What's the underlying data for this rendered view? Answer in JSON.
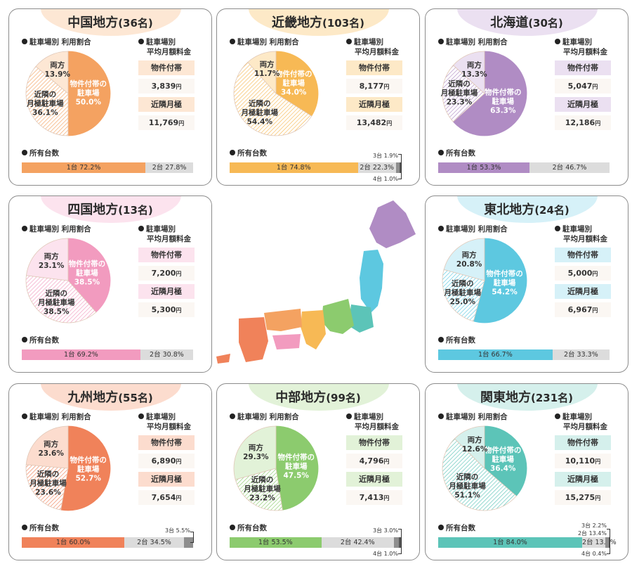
{
  "labels": {
    "usage": "駐車場別 利用割合",
    "fee_line1": "駐車場別",
    "fee_line2": "平均月額料金",
    "owned": "所有台数",
    "unit": "円",
    "fee_row1": "物件付帯",
    "fee_row2": "近隣月極"
  },
  "chart_data": [
    {
      "type": "pie",
      "region": "中国地方",
      "count": "(36名)",
      "color": "#f4a261",
      "light": "#fde7d4",
      "slices": [
        {
          "label": "物件付帯の\n駐車場",
          "value": 50.0
        },
        {
          "label": "近隣の\n月極駐車場",
          "value": 36.1
        },
        {
          "label": "両方",
          "value": 13.9
        }
      ],
      "fees": {
        "property": "3,839",
        "nearby": "11,769"
      },
      "ownership": [
        {
          "label": "1台",
          "value": 72.2
        },
        {
          "label": "2台",
          "value": 27.8
        }
      ],
      "extras": []
    },
    {
      "type": "pie",
      "region": "近畿地方",
      "count": "(103名)",
      "color": "#f7b955",
      "light": "#fde9c7",
      "slices": [
        {
          "label": "物件付帯の\n駐車場",
          "value": 34.0
        },
        {
          "label": "近隣の\n月極駐車場",
          "value": 54.4
        },
        {
          "label": "両方",
          "value": 11.7
        }
      ],
      "fees": {
        "property": "8,177",
        "nearby": "13,482"
      },
      "ownership": [
        {
          "label": "1台",
          "value": 74.8
        },
        {
          "label": "2台",
          "value": 22.3
        },
        {
          "label": "3台",
          "value": 1.9
        },
        {
          "label": "4台",
          "value": 1.0
        }
      ],
      "extras": [
        {
          "label": "3台",
          "value": "1.9%"
        },
        {
          "label": "4台",
          "value": "1.0%"
        }
      ]
    },
    {
      "type": "pie",
      "region": "北海道",
      "count": "(30名)",
      "color": "#b08cc4",
      "light": "#ebe0f1",
      "slices": [
        {
          "label": "物件付帯の\n駐車場",
          "value": 63.3
        },
        {
          "label": "近隣の\n月極駐車場",
          "value": 23.3
        },
        {
          "label": "両方",
          "value": 13.3
        }
      ],
      "fees": {
        "property": "5,047",
        "nearby": "12,186"
      },
      "ownership": [
        {
          "label": "1台",
          "value": 53.3
        },
        {
          "label": "2台",
          "value": 46.7
        }
      ],
      "extras": []
    },
    {
      "type": "pie",
      "region": "四国地方",
      "count": "(13名)",
      "color": "#f29bbf",
      "light": "#fce3ee",
      "slices": [
        {
          "label": "物件付帯の\n駐車場",
          "value": 38.5
        },
        {
          "label": "近隣の\n月極駐車場",
          "value": 38.5
        },
        {
          "label": "両方",
          "value": 23.1
        }
      ],
      "fees": {
        "property": "7,200",
        "nearby": "5,300"
      },
      "ownership": [
        {
          "label": "1台",
          "value": 69.2
        },
        {
          "label": "2台",
          "value": 30.8
        }
      ],
      "extras": []
    },
    {
      "type": "pie",
      "region": "東北地方",
      "count": "(24名)",
      "color": "#5dc8e0",
      "light": "#d6f1f8",
      "slices": [
        {
          "label": "物件付帯の\n駐車場",
          "value": 54.2
        },
        {
          "label": "近隣の\n月極駐車場",
          "value": 25.0
        },
        {
          "label": "両方",
          "value": 20.8
        }
      ],
      "fees": {
        "property": "5,000",
        "nearby": "6,967"
      },
      "ownership": [
        {
          "label": "1台",
          "value": 66.7
        },
        {
          "label": "2台",
          "value": 33.3
        }
      ],
      "extras": []
    },
    {
      "type": "pie",
      "region": "九州地方",
      "count": "(55名)",
      "color": "#f0825a",
      "light": "#fcdcce",
      "slices": [
        {
          "label": "物件付帯の\n駐車場",
          "value": 52.7
        },
        {
          "label": "近隣の\n月極駐車場",
          "value": 23.6
        },
        {
          "label": "両方",
          "value": 23.6
        }
      ],
      "fees": {
        "property": "6,890",
        "nearby": "7,654"
      },
      "ownership": [
        {
          "label": "1台",
          "value": 60.0
        },
        {
          "label": "2台",
          "value": 34.5
        },
        {
          "label": "3台",
          "value": 5.5
        }
      ],
      "extras": [
        {
          "label": "3台",
          "value": "5.5%"
        }
      ]
    },
    {
      "type": "pie",
      "region": "中部地方",
      "count": "(99名)",
      "color": "#8ccb6e",
      "light": "#e2f2d8",
      "slices": [
        {
          "label": "物件付帯の\n駐車場",
          "value": 47.5
        },
        {
          "label": "近隣の\n月極駐車場",
          "value": 23.2
        },
        {
          "label": "両方",
          "value": 29.3
        }
      ],
      "fees": {
        "property": "4,796",
        "nearby": "7,413"
      },
      "ownership": [
        {
          "label": "1台",
          "value": 53.5
        },
        {
          "label": "2台",
          "value": 42.4
        },
        {
          "label": "3台",
          "value": 3.0
        },
        {
          "label": "4台",
          "value": 1.0
        }
      ],
      "extras": [
        {
          "label": "3台",
          "value": "3.0%"
        },
        {
          "label": "4台",
          "value": "1.0%"
        }
      ]
    },
    {
      "type": "pie",
      "region": "関東地方",
      "count": "(231名)",
      "color": "#5cc4b8",
      "light": "#d5f0ec",
      "slices": [
        {
          "label": "物件付帯の\n駐車場",
          "value": 36.4
        },
        {
          "label": "近隣の\n月極駐車場",
          "value": 51.1
        },
        {
          "label": "両方",
          "value": 12.6
        }
      ],
      "fees": {
        "property": "10,110",
        "nearby": "15,275"
      },
      "ownership": [
        {
          "label": "1台",
          "value": 84.0
        },
        {
          "label": "2台",
          "value": 13.4
        },
        {
          "label": "3台",
          "value": 2.2
        },
        {
          "label": "4台",
          "value": 0.4
        }
      ],
      "extras": [
        {
          "label": "3台",
          "value": "2.2%"
        },
        {
          "label": "2台",
          "value": "13.4%"
        },
        {
          "label": "4台",
          "value": "0.4%"
        }
      ]
    }
  ]
}
